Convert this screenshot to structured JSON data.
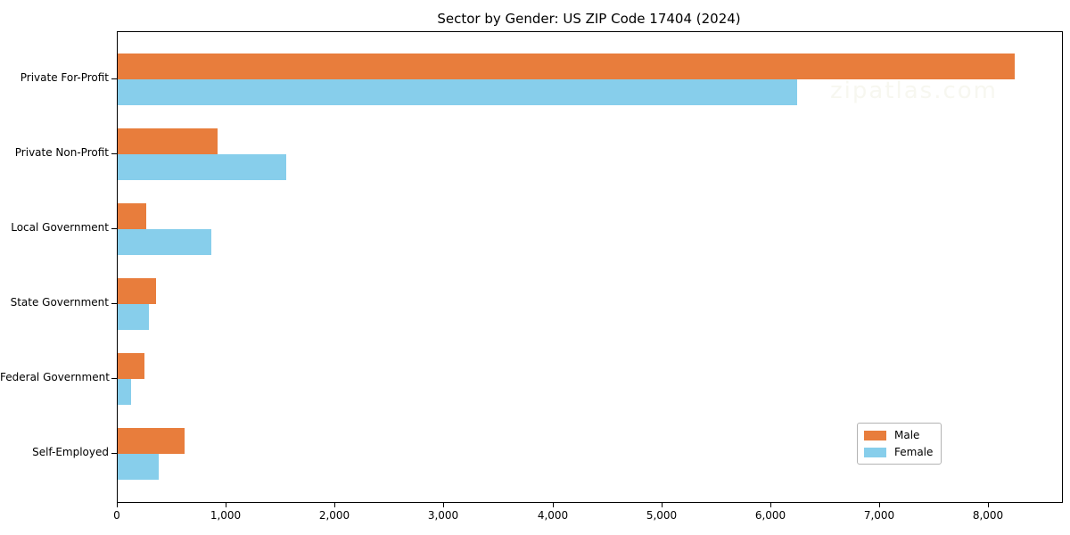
{
  "title": "Sector by Gender: US ZIP Code 17404 (2024)",
  "watermark": "zipatlas.com",
  "colors": {
    "male": "#e87d3c",
    "female": "#87ceeb",
    "frame": "#000000",
    "background": "#ffffff"
  },
  "legend": {
    "position": "lower right",
    "entries": [
      {
        "label": "Male",
        "color": "#e87d3c"
      },
      {
        "label": "Female",
        "color": "#87ceeb"
      }
    ]
  },
  "chart_data": {
    "type": "bar",
    "orientation": "horizontal",
    "title": "Sector by Gender: US ZIP Code 17404 (2024)",
    "categories": [
      "Private For-Profit",
      "Private Non-Profit",
      "Local Government",
      "State Government",
      "Federal Government",
      "Self-Employed"
    ],
    "series": [
      {
        "name": "Male",
        "color": "#e87d3c",
        "values": [
          8240,
          920,
          265,
          350,
          245,
          610
        ]
      },
      {
        "name": "Female",
        "color": "#87ceeb",
        "values": [
          6240,
          1545,
          860,
          285,
          120,
          380
        ]
      }
    ],
    "xlim": [
      0,
      8670
    ],
    "xticks": [
      0,
      1000,
      2000,
      3000,
      4000,
      5000,
      6000,
      7000,
      8000
    ],
    "xtick_labels": [
      "0",
      "1,000",
      "2,000",
      "3,000",
      "4,000",
      "5,000",
      "6,000",
      "7,000",
      "8,000"
    ],
    "xlabel": "",
    "ylabel": "",
    "grid": false,
    "legend_position": "lower right"
  }
}
